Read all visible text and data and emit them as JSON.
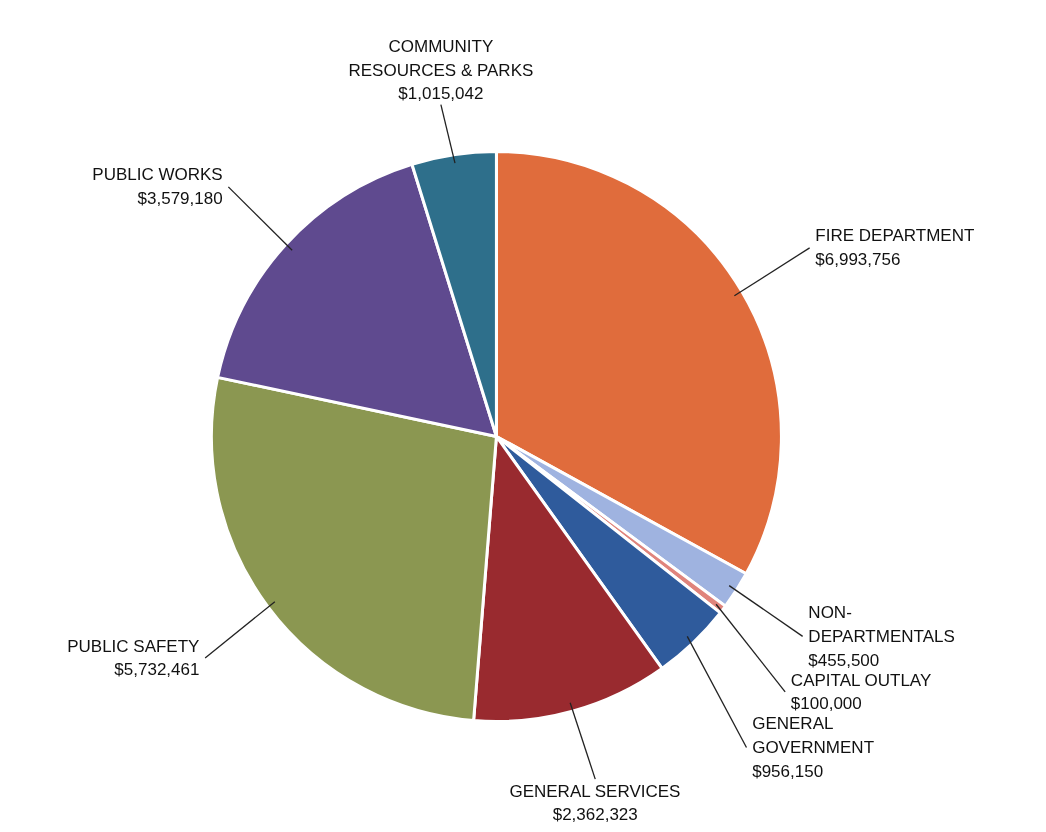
{
  "chart_data": {
    "type": "pie",
    "categories": [
      "FIRE DEPARTMENT",
      "NON-\nDEPARTMENTALS",
      "CAPITAL OUTLAY",
      "GENERAL\nGOVERNMENT",
      "GENERAL SERVICES",
      "PUBLIC SAFETY",
      "PUBLIC WORKS",
      "COMMUNITY\nRESOURCES & PARKS"
    ],
    "values": [
      6993756,
      455500,
      100000,
      956150,
      2362323,
      5732461,
      3579180,
      1015042
    ],
    "value_labels": [
      "$6,993,756",
      "$455,500",
      "$100,000",
      "$956,150",
      "$2,362,323",
      "$5,732,461",
      "$3,579,180",
      "$1,015,042"
    ],
    "colors": [
      "#e06c3c",
      "#9fb3e0",
      "#e0847c",
      "#2f5b9c",
      "#992a2f",
      "#8b9751",
      "#5f4a8f",
      "#2e6f8b"
    ]
  }
}
